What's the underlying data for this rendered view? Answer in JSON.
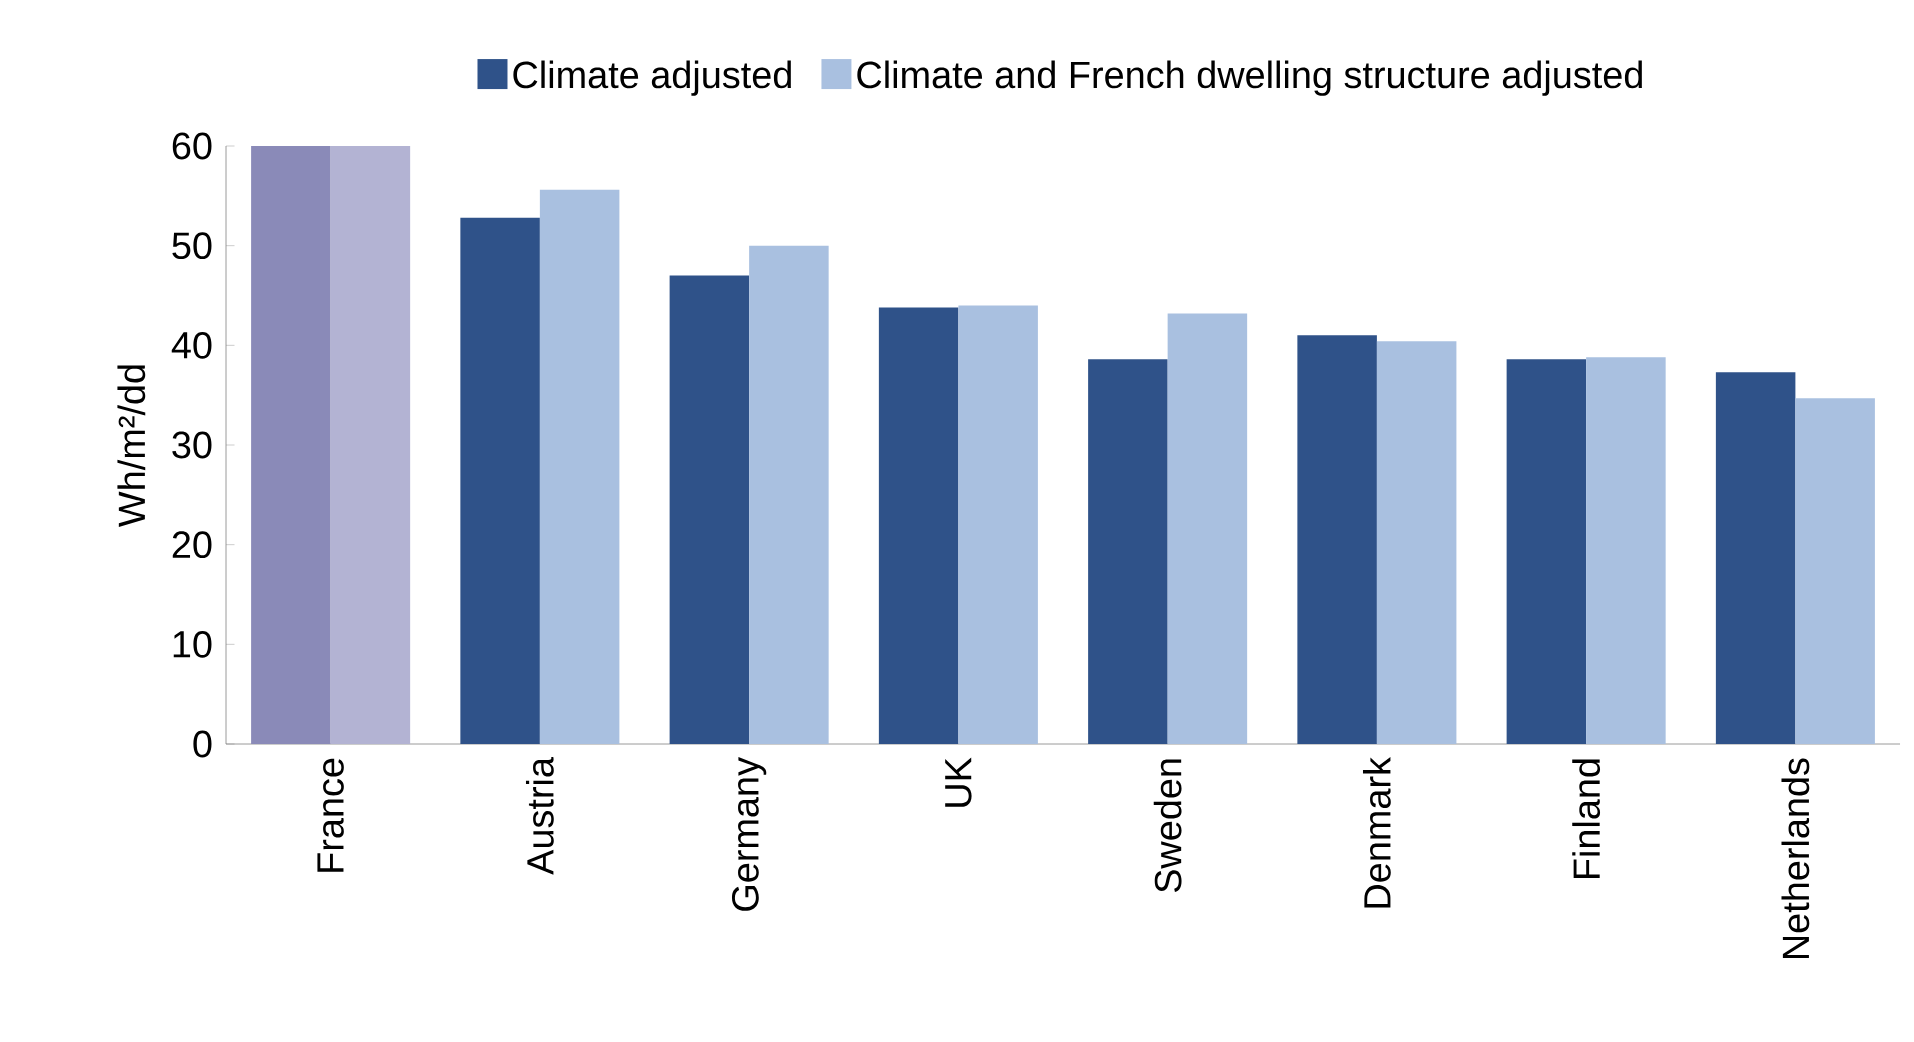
{
  "chart_data": {
    "type": "bar",
    "ylabel": "Wh/m²/dd",
    "categories": [
      "France",
      "Austria",
      "Germany",
      "UK",
      "Sweden",
      "Denmark",
      "Finland",
      "Netherlands"
    ],
    "series": [
      {
        "name": "Climate adjusted",
        "color": "#2f5289",
        "colors": [
          "#8a8ab8",
          "#2f5289",
          "#2f5289",
          "#2f5289",
          "#2f5289",
          "#2f5289",
          "#2f5289",
          "#2f5289"
        ],
        "values": [
          60,
          52.8,
          47,
          43.8,
          38.6,
          41,
          38.6,
          37.3
        ]
      },
      {
        "name": "Climate and French dwelling structure adjusted",
        "color": "#a9c0e0",
        "colors": [
          "#b3b3d3",
          "#a9c0e0",
          "#a9c0e0",
          "#a9c0e0",
          "#a9c0e0",
          "#a9c0e0",
          "#a9c0e0",
          "#a9c0e0"
        ],
        "values": [
          60,
          55.6,
          50,
          44,
          43.2,
          40.4,
          38.8,
          34.7
        ]
      }
    ],
    "ylim": [
      0,
      60
    ],
    "yticks": [
      0,
      10,
      20,
      30,
      40,
      50,
      60
    ],
    "grid": false,
    "legend": "top"
  }
}
